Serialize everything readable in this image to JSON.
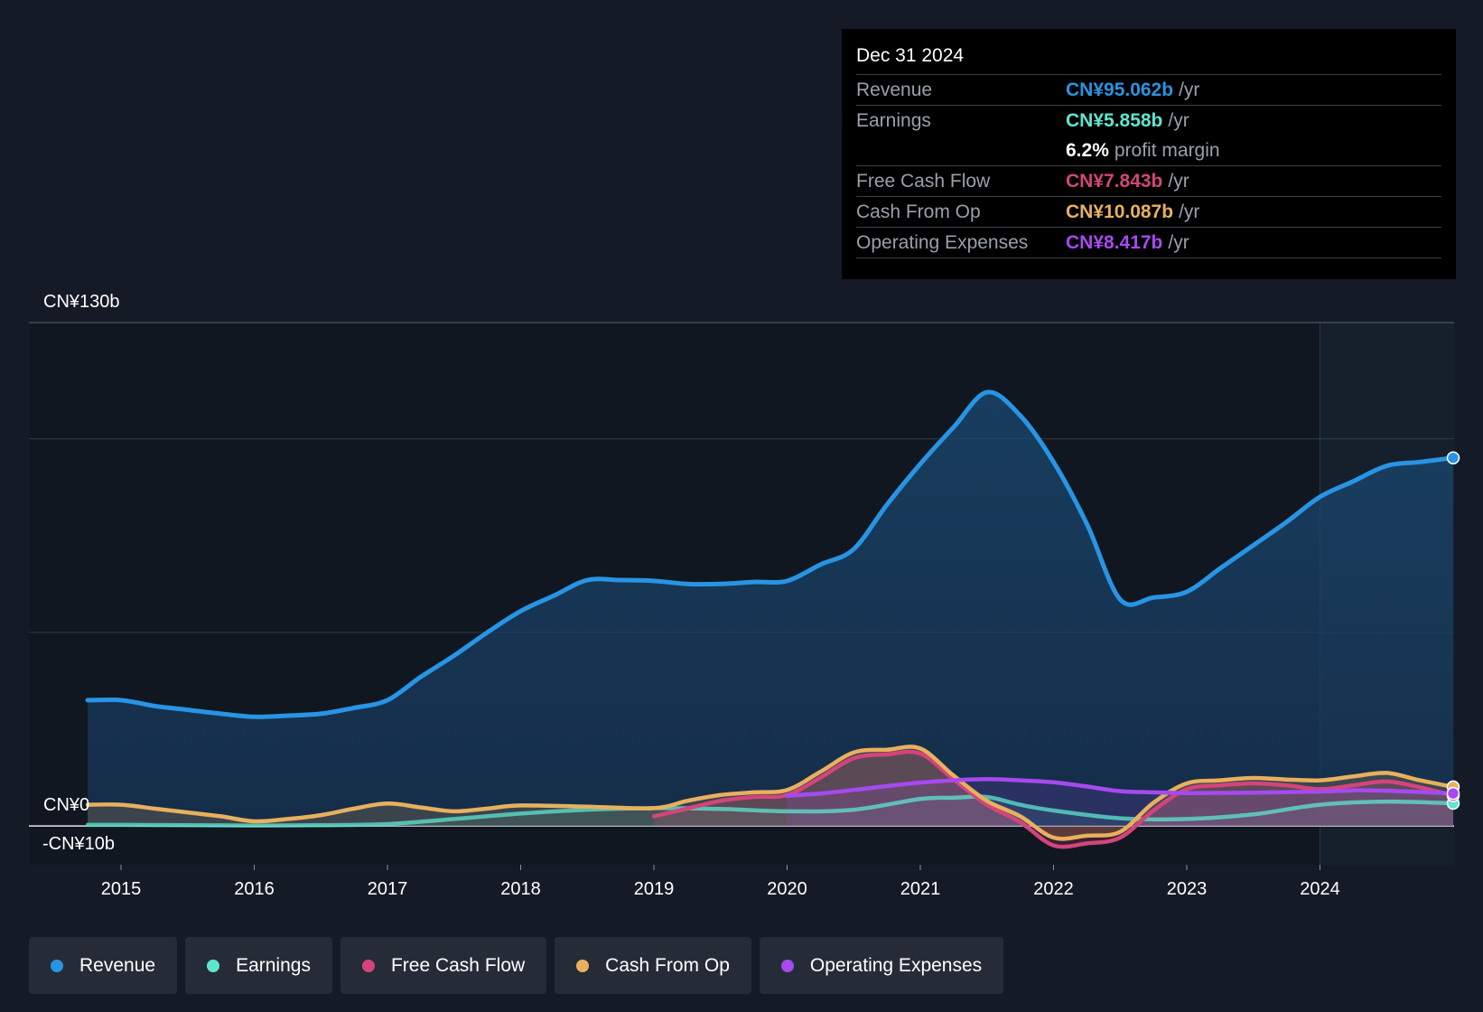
{
  "chart_data": {
    "type": "area",
    "x_ticks": [
      "2015",
      "2016",
      "2017",
      "2018",
      "2019",
      "2020",
      "2021",
      "2022",
      "2023",
      "2024"
    ],
    "y_axis": {
      "top_label": "CN¥130b",
      "zero_label": "CN¥0",
      "bottom_label": "-CN¥10b",
      "ylim": [
        -10,
        130
      ]
    },
    "series": [
      {
        "name": "Revenue",
        "color": "#2894e4",
        "points": [
          [
            2014.75,
            32.5
          ],
          [
            2015.0,
            32.5
          ],
          [
            2015.25,
            31.0
          ],
          [
            2015.5,
            30.0
          ],
          [
            2015.75,
            29.0
          ],
          [
            2016.0,
            28.2
          ],
          [
            2016.25,
            28.5
          ],
          [
            2016.5,
            29.0
          ],
          [
            2016.75,
            30.5
          ],
          [
            2017.0,
            32.5
          ],
          [
            2017.25,
            38.5
          ],
          [
            2017.5,
            44.0
          ],
          [
            2017.75,
            50.0
          ],
          [
            2018.0,
            55.5
          ],
          [
            2018.25,
            59.5
          ],
          [
            2018.5,
            63.5
          ],
          [
            2018.75,
            63.5
          ],
          [
            2019.0,
            63.3
          ],
          [
            2019.25,
            62.5
          ],
          [
            2019.5,
            62.5
          ],
          [
            2019.75,
            63.0
          ],
          [
            2020.0,
            63.3
          ],
          [
            2020.25,
            67.5
          ],
          [
            2020.5,
            71.5
          ],
          [
            2020.75,
            83.0
          ],
          [
            2021.0,
            93.5
          ],
          [
            2021.25,
            103.0
          ],
          [
            2021.5,
            112.0
          ],
          [
            2021.75,
            106.0
          ],
          [
            2022.0,
            94.0
          ],
          [
            2022.25,
            78.0
          ],
          [
            2022.5,
            58.5
          ],
          [
            2022.75,
            59.0
          ],
          [
            2023.0,
            60.5
          ],
          [
            2023.25,
            66.5
          ],
          [
            2023.5,
            72.5
          ],
          [
            2023.75,
            78.5
          ],
          [
            2024.0,
            85.0
          ],
          [
            2024.25,
            89.0
          ],
          [
            2024.5,
            93.0
          ],
          [
            2024.75,
            94.0
          ],
          [
            2025.0,
            95.062
          ]
        ]
      },
      {
        "name": "Earnings",
        "color": "#5ee6d0",
        "points": [
          [
            2014.75,
            0.3
          ],
          [
            2015.0,
            0.3
          ],
          [
            2015.5,
            0.2
          ],
          [
            2016.0,
            0.1
          ],
          [
            2016.5,
            0.2
          ],
          [
            2017.0,
            0.5
          ],
          [
            2017.5,
            1.8
          ],
          [
            2018.0,
            3.2
          ],
          [
            2018.5,
            4.2
          ],
          [
            2019.0,
            4.6
          ],
          [
            2019.5,
            4.4
          ],
          [
            2020.0,
            3.8
          ],
          [
            2020.5,
            4.2
          ],
          [
            2021.0,
            7.0
          ],
          [
            2021.25,
            7.3
          ],
          [
            2021.5,
            7.5
          ],
          [
            2021.75,
            5.5
          ],
          [
            2022.0,
            4.0
          ],
          [
            2022.5,
            2.0
          ],
          [
            2023.0,
            1.8
          ],
          [
            2023.5,
            3.0
          ],
          [
            2024.0,
            5.5
          ],
          [
            2024.5,
            6.3
          ],
          [
            2025.0,
            5.858
          ]
        ]
      },
      {
        "name": "Free Cash Flow",
        "color": "#d3457a",
        "points": [
          [
            2019.0,
            2.5
          ],
          [
            2019.25,
            4.5
          ],
          [
            2019.5,
            6.5
          ],
          [
            2019.75,
            7.5
          ],
          [
            2020.0,
            8.0
          ],
          [
            2020.25,
            12.5
          ],
          [
            2020.5,
            17.5
          ],
          [
            2020.75,
            18.5
          ],
          [
            2021.0,
            18.7
          ],
          [
            2021.25,
            12.0
          ],
          [
            2021.5,
            5.5
          ],
          [
            2021.75,
            1.0
          ],
          [
            2022.0,
            -5.0
          ],
          [
            2022.25,
            -4.5
          ],
          [
            2022.5,
            -3.0
          ],
          [
            2022.75,
            4.0
          ],
          [
            2023.0,
            9.5
          ],
          [
            2023.25,
            10.5
          ],
          [
            2023.5,
            11.0
          ],
          [
            2023.75,
            10.5
          ],
          [
            2024.0,
            9.5
          ],
          [
            2024.25,
            10.5
          ],
          [
            2024.5,
            11.5
          ],
          [
            2024.75,
            10.0
          ],
          [
            2025.0,
            7.843
          ]
        ]
      },
      {
        "name": "Cash From Op",
        "color": "#e8b05e",
        "points": [
          [
            2014.75,
            5.5
          ],
          [
            2015.0,
            5.5
          ],
          [
            2015.25,
            4.5
          ],
          [
            2015.5,
            3.5
          ],
          [
            2015.75,
            2.5
          ],
          [
            2016.0,
            1.2
          ],
          [
            2016.25,
            1.8
          ],
          [
            2016.5,
            2.8
          ],
          [
            2016.75,
            4.5
          ],
          [
            2017.0,
            5.8
          ],
          [
            2017.25,
            4.8
          ],
          [
            2017.5,
            3.8
          ],
          [
            2017.75,
            4.5
          ],
          [
            2018.0,
            5.3
          ],
          [
            2018.5,
            5.0
          ],
          [
            2019.0,
            4.6
          ],
          [
            2019.25,
            6.5
          ],
          [
            2019.5,
            8.0
          ],
          [
            2019.75,
            8.7
          ],
          [
            2020.0,
            9.3
          ],
          [
            2020.25,
            14.0
          ],
          [
            2020.5,
            19.0
          ],
          [
            2020.75,
            19.7
          ],
          [
            2021.0,
            20.0
          ],
          [
            2021.25,
            13.0
          ],
          [
            2021.5,
            6.5
          ],
          [
            2021.75,
            2.5
          ],
          [
            2022.0,
            -3.0
          ],
          [
            2022.25,
            -2.5
          ],
          [
            2022.5,
            -1.5
          ],
          [
            2022.75,
            6.0
          ],
          [
            2023.0,
            11.0
          ],
          [
            2023.25,
            11.8
          ],
          [
            2023.5,
            12.4
          ],
          [
            2023.75,
            12.0
          ],
          [
            2024.0,
            11.8
          ],
          [
            2024.25,
            12.8
          ],
          [
            2024.5,
            13.7
          ],
          [
            2024.75,
            11.8
          ],
          [
            2025.0,
            10.087
          ]
        ]
      },
      {
        "name": "Operating Expenses",
        "color": "#a64af0",
        "points": [
          [
            2020.0,
            7.8
          ],
          [
            2020.25,
            8.4
          ],
          [
            2020.5,
            9.3
          ],
          [
            2020.75,
            10.3
          ],
          [
            2021.0,
            11.2
          ],
          [
            2021.25,
            11.8
          ],
          [
            2021.5,
            12.1
          ],
          [
            2021.75,
            11.8
          ],
          [
            2022.0,
            11.3
          ],
          [
            2022.25,
            10.2
          ],
          [
            2022.5,
            9.0
          ],
          [
            2022.75,
            8.7
          ],
          [
            2023.0,
            8.5
          ],
          [
            2023.5,
            8.6
          ],
          [
            2024.0,
            8.9
          ],
          [
            2024.25,
            9.2
          ],
          [
            2024.5,
            9.1
          ],
          [
            2025.0,
            8.417
          ]
        ]
      }
    ],
    "tooltip": {
      "date": "Dec 31 2024",
      "rows": [
        {
          "label": "Revenue",
          "value": "CN¥95.062b",
          "unit": "/yr",
          "color": "#2894e4"
        },
        {
          "label": "Earnings",
          "value": "CN¥5.858b",
          "unit": "/yr",
          "color": "#5ee6d0"
        },
        {
          "label": "",
          "value": "6.2%",
          "unit": "profit margin",
          "color": "#ffffff"
        },
        {
          "label": "Free Cash Flow",
          "value": "CN¥7.843b",
          "unit": "/yr",
          "color": "#d3457a"
        },
        {
          "label": "Cash From Op",
          "value": "CN¥10.087b",
          "unit": "/yr",
          "color": "#e8b05e"
        },
        {
          "label": "Operating Expenses",
          "value": "CN¥8.417b",
          "unit": "/yr",
          "color": "#a64af0"
        }
      ]
    },
    "legend": [
      {
        "label": "Revenue",
        "color": "#2894e4"
      },
      {
        "label": "Earnings",
        "color": "#5ee6d0"
      },
      {
        "label": "Free Cash Flow",
        "color": "#d3457a"
      },
      {
        "label": "Cash From Op",
        "color": "#e8b05e"
      },
      {
        "label": "Operating Expenses",
        "color": "#a64af0"
      }
    ]
  }
}
